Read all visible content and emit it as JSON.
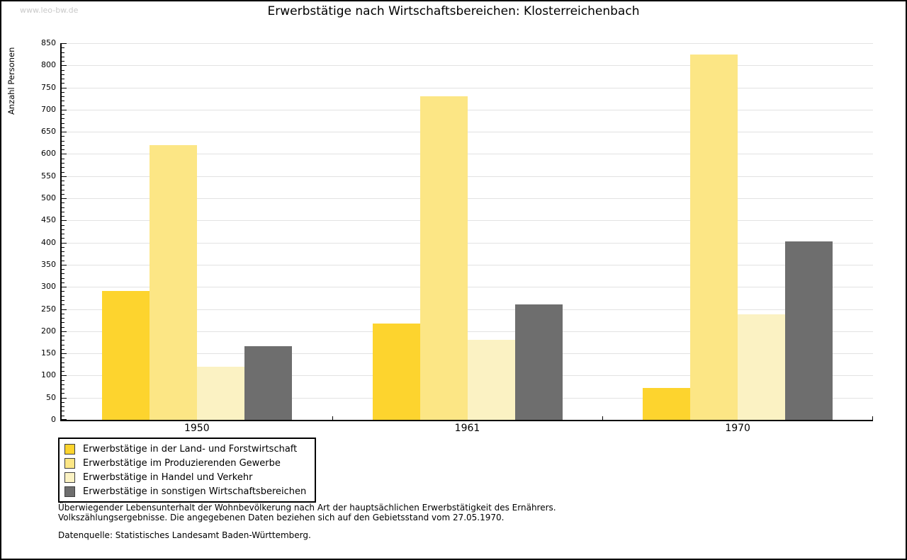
{
  "watermark": "www.leo-bw.de",
  "title": "Erwerbstätige nach Wirtschaftsbereichen: Klosterreichenbach",
  "chart_data": {
    "type": "bar",
    "title": "Erwerbstätige nach Wirtschaftsbereichen: Klosterreichenbach",
    "xlabel": "",
    "ylabel": "Anzahl Personen",
    "ylim": [
      0,
      850
    ],
    "ytick_interval": 50,
    "minor_tick_interval": 10,
    "grid": true,
    "legend_position": "bottom-left",
    "categories": [
      "1950",
      "1961",
      "1970"
    ],
    "series": [
      {
        "name": "Erwerbstätige in der Land- und Forstwirtschaft",
        "color": "#fdd42e",
        "values": [
          291,
          218,
          72
        ]
      },
      {
        "name": "Erwerbstätige im Produzierenden Gewerbe",
        "color": "#fce685",
        "values": [
          620,
          730,
          825
        ]
      },
      {
        "name": "Erwerbstätige in Handel und Verkehr",
        "color": "#fbf2c3",
        "values": [
          120,
          180,
          238
        ]
      },
      {
        "name": "Erwerbstätige in sonstigen Wirtschaftsbereichen",
        "color": "#6e6e6e",
        "values": [
          166,
          260,
          402
        ]
      }
    ],
    "axis_color": "#000000",
    "grid_color": "#e2e2e2",
    "background_color": "#ffffff"
  },
  "footer": {
    "line1": "Überwiegender Lebensunterhalt der Wohnbevölkerung nach Art der hauptsächlichen Erwerbstätigkeit des Ernährers.",
    "line2": "Volkszählungsergebnisse. Die angegebenen Daten beziehen sich auf den Gebietsstand vom 27.05.1970.",
    "source": "Datenquelle: Statistisches Landesamt Baden-Württemberg."
  }
}
